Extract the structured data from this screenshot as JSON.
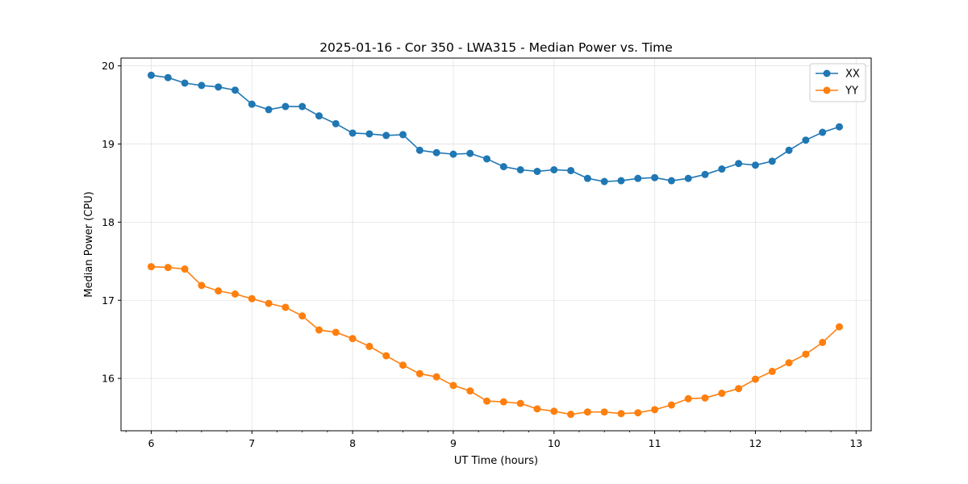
{
  "chart_data": {
    "type": "line",
    "title": "2025-01-16 - Cor 350 - LWA315 - Median Power vs. Time",
    "xlabel": "UT Time (hours)",
    "ylabel": "Median Power (CPU)",
    "xlim": [
      5.7,
      13.15
    ],
    "ylim": [
      15.33,
      20.1
    ],
    "xticks": [
      6,
      7,
      8,
      9,
      10,
      11,
      12,
      13
    ],
    "yticks": [
      16,
      17,
      18,
      19,
      20
    ],
    "grid": true,
    "legend_position": "top-right",
    "x": [
      6.0,
      6.1667,
      6.3333,
      6.5,
      6.6667,
      6.8333,
      7.0,
      7.1667,
      7.3333,
      7.5,
      7.6667,
      7.8333,
      8.0,
      8.1667,
      8.3333,
      8.5,
      8.6667,
      8.8333,
      9.0,
      9.1667,
      9.3333,
      9.5,
      9.6667,
      9.8333,
      10.0,
      10.1667,
      10.3333,
      10.5,
      10.6667,
      10.8333,
      11.0,
      11.1667,
      11.3333,
      11.5,
      11.6667,
      11.8333,
      12.0,
      12.1667,
      12.3333,
      12.5,
      12.6667,
      12.8333
    ],
    "series": [
      {
        "name": "XX",
        "color": "#1f77b4",
        "values": [
          19.88,
          19.85,
          19.78,
          19.75,
          19.73,
          19.69,
          19.51,
          19.44,
          19.48,
          19.48,
          19.36,
          19.26,
          19.14,
          19.13,
          19.11,
          19.12,
          18.92,
          18.89,
          18.87,
          18.88,
          18.81,
          18.71,
          18.67,
          18.65,
          18.67,
          18.66,
          18.56,
          18.52,
          18.53,
          18.56,
          18.57,
          18.53,
          18.56,
          18.61,
          18.68,
          18.75,
          18.73,
          18.78,
          18.92,
          19.05,
          19.15,
          19.22
        ]
      },
      {
        "name": "YY",
        "color": "#ff7f0e",
        "values": [
          17.43,
          17.42,
          17.4,
          17.19,
          17.12,
          17.08,
          17.02,
          16.96,
          16.91,
          16.8,
          16.62,
          16.59,
          16.51,
          16.41,
          16.29,
          16.17,
          16.06,
          16.02,
          15.91,
          15.84,
          15.71,
          15.7,
          15.68,
          15.61,
          15.58,
          15.54,
          15.57,
          15.57,
          15.55,
          15.56,
          15.6,
          15.66,
          15.74,
          15.75,
          15.81,
          15.87,
          15.99,
          16.09,
          16.2,
          16.31,
          16.46,
          16.66
        ]
      }
    ]
  }
}
